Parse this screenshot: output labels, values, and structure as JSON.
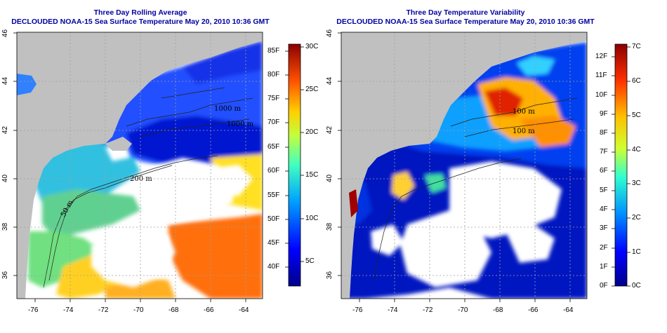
{
  "left_panel": {
    "title_line1": "Three Day Rolling Average",
    "title_line2": "DECLOUDED NOAA-15 Sea Surface Temperature May 20, 2010 10:36 GMT",
    "x_ticks": [
      "-76",
      "-74",
      "-72",
      "-70",
      "-68",
      "-66",
      "-64"
    ],
    "y_ticks": [
      "36",
      "38",
      "40",
      "42",
      "44",
      "46"
    ],
    "contour_labels": [
      "1000 m",
      "1000 m",
      "200 m",
      "50 m"
    ],
    "colorbar_f": [
      "85F",
      "80F",
      "75F",
      "70F",
      "65F",
      "60F",
      "55F",
      "50F",
      "45F",
      "40F"
    ],
    "colorbar_c": [
      "30C",
      "25C",
      "20C",
      "15C",
      "10C",
      "5C"
    ]
  },
  "right_panel": {
    "title_line1": "Three Day Temperature Variability",
    "title_line2": "DECLOUDED NOAA-15 Sea Surface Temperature May 20, 2010 10:36 GMT",
    "x_ticks": [
      "-76",
      "-74",
      "-72",
      "-70",
      "-68",
      "-66",
      "-64"
    ],
    "y_ticks": [
      "36",
      "38",
      "40",
      "42",
      "44",
      "46"
    ],
    "contour_labels": [
      "100 m",
      "100 m"
    ],
    "colorbar_f": [
      "12F",
      "11F",
      "10F",
      "9F",
      "8F",
      "7F",
      "6F",
      "5F",
      "4F",
      "3F",
      "2F",
      "1F",
      "0F"
    ],
    "colorbar_c": [
      "7C",
      "6C",
      "5C",
      "4C",
      "3C",
      "2C",
      "1C",
      "0C"
    ]
  },
  "colors": {
    "land": "#c0c0c0",
    "cloud": "#ffffff",
    "title": "#0000a0"
  }
}
